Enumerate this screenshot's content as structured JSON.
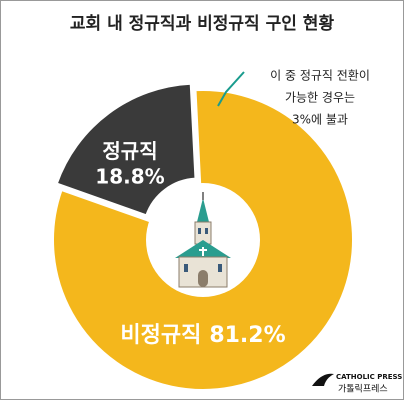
{
  "chart_data": {
    "type": "donut",
    "title": "교회 내 정규직과 비정규직 구인 현황",
    "categories": [
      "정규직",
      "비정규직"
    ],
    "values": [
      18.8,
      81.2
    ],
    "value_labels": [
      "18.8%",
      "81.2%"
    ],
    "colors": [
      "#3a3a3a",
      "#f4b71c"
    ],
    "annotation": [
      "이 중 정규직 전환이",
      "가능한 경우는",
      "3%에 불과"
    ],
    "source": [
      "CATHOLIC PRESS",
      "가톨릭프레스"
    ]
  }
}
